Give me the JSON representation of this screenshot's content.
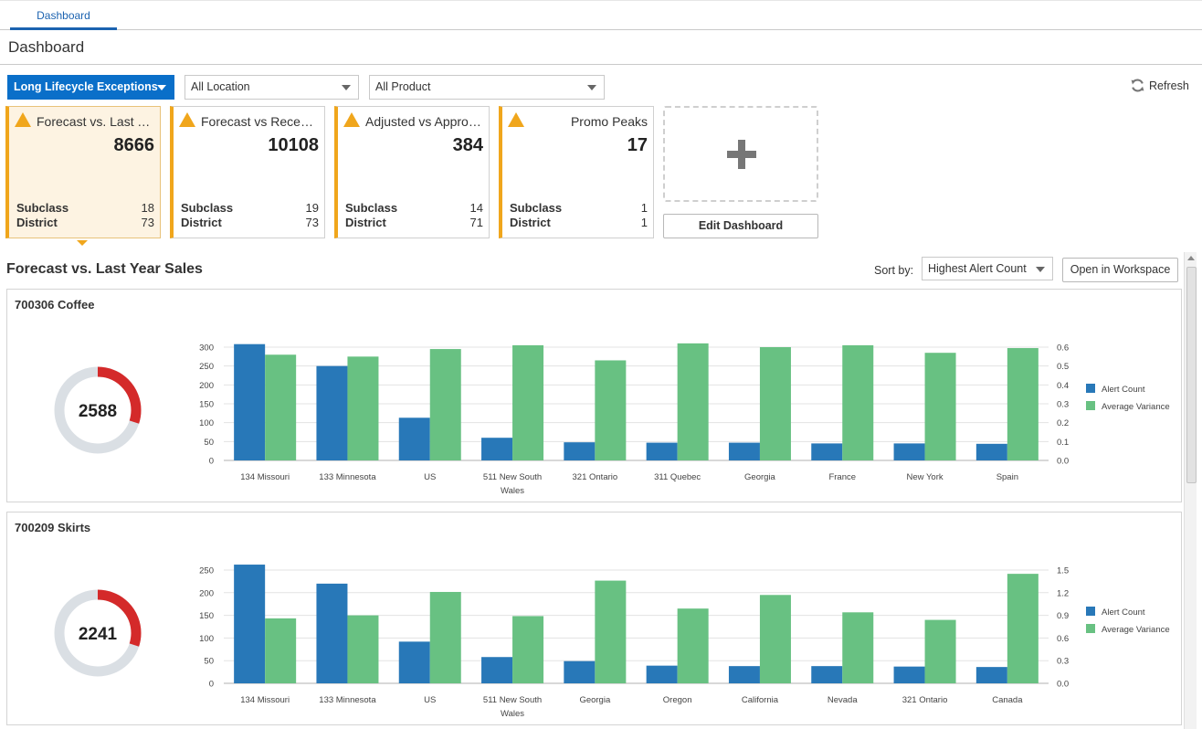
{
  "tabs": [
    {
      "label": "Dashboard"
    }
  ],
  "page_title": "Dashboard",
  "filters": {
    "exception_type": "Long Lifecycle Exceptions",
    "location": "All Location",
    "product": "All Product"
  },
  "refresh_label": "Refresh",
  "cards": [
    {
      "title": "Forecast vs. Last Year Sales",
      "value": "8666",
      "rows": [
        {
          "label": "Subclass",
          "value": "18"
        },
        {
          "label": "District",
          "value": "73"
        }
      ]
    },
    {
      "title": "Forecast vs Recent Sales",
      "value": "10108",
      "rows": [
        {
          "label": "Subclass",
          "value": "19"
        },
        {
          "label": "District",
          "value": "73"
        }
      ]
    },
    {
      "title": "Adjusted vs Approved Forecast",
      "value": "384",
      "rows": [
        {
          "label": "Subclass",
          "value": "14"
        },
        {
          "label": "District",
          "value": "71"
        }
      ]
    },
    {
      "title": "Promo Peaks",
      "value": "17",
      "rows": [
        {
          "label": "Subclass",
          "value": "1"
        },
        {
          "label": "District",
          "value": "1"
        }
      ]
    }
  ],
  "edit_dashboard_label": "Edit Dashboard",
  "section_title": "Forecast vs. Last Year Sales",
  "sort": {
    "label": "Sort by:",
    "value": "Highest Alert Count"
  },
  "open_workspace_label": "Open in Workspace",
  "colors": {
    "alert": "#2878b8",
    "variance": "#68c182",
    "donut_alert": "#d42a2a",
    "donut_rest": "#dadfe4",
    "accent": "#0a6fc9",
    "warning": "#f0a61c"
  },
  "chart_data": [
    {
      "type": "bar",
      "title": "700306 Coffee",
      "donut_value": "2588",
      "donut_fraction": 0.3,
      "categories": [
        "134 Missouri",
        "133 Minnesota",
        "US",
        "511 New South Wales",
        "321 Ontario",
        "311 Quebec",
        "Georgia",
        "France",
        "New York",
        "Spain"
      ],
      "series": [
        {
          "name": "Alert Count",
          "axis": "left",
          "values": [
            308,
            250,
            113,
            60,
            48,
            47,
            47,
            45,
            45,
            44
          ]
        },
        {
          "name": "Average Variance",
          "axis": "right",
          "values": [
            0.56,
            0.55,
            0.59,
            0.61,
            0.53,
            0.62,
            0.6,
            0.61,
            0.57,
            0.595
          ]
        }
      ],
      "y_left": {
        "min": 0,
        "max": 300,
        "ticks": [
          "300",
          "250",
          "200",
          "150",
          "100",
          "50",
          "0"
        ]
      },
      "y_right": {
        "min": 0,
        "max": 0.6,
        "ticks": [
          "0.6",
          "0.5",
          "0.4",
          "0.3",
          "0.2",
          "0.1",
          "0.0"
        ]
      },
      "grid": true,
      "legend": "right"
    },
    {
      "type": "bar",
      "title": "700209 Skirts",
      "donut_value": "2241",
      "donut_fraction": 0.3,
      "categories": [
        "134 Missouri",
        "133 Minnesota",
        "US",
        "511 New South Wales",
        "Georgia",
        "Oregon",
        "California",
        "Nevada",
        "321 Ontario",
        "Canada"
      ],
      "series": [
        {
          "name": "Alert Count",
          "axis": "left",
          "values": [
            262,
            220,
            92,
            58,
            49,
            39,
            38,
            38,
            37,
            36
          ]
        },
        {
          "name": "Average Variance",
          "axis": "right",
          "values": [
            0.86,
            0.9,
            1.21,
            0.89,
            1.36,
            0.99,
            1.17,
            0.94,
            0.84,
            1.45
          ]
        }
      ],
      "y_left": {
        "min": 0,
        "max": 250,
        "ticks": [
          "250",
          "200",
          "150",
          "100",
          "50",
          "0"
        ]
      },
      "y_right": {
        "min": 0,
        "max": 1.5,
        "ticks": [
          "1.5",
          "1.2",
          "0.9",
          "0.6",
          "0.3",
          "0.0"
        ]
      },
      "grid": true,
      "legend": "right"
    }
  ]
}
